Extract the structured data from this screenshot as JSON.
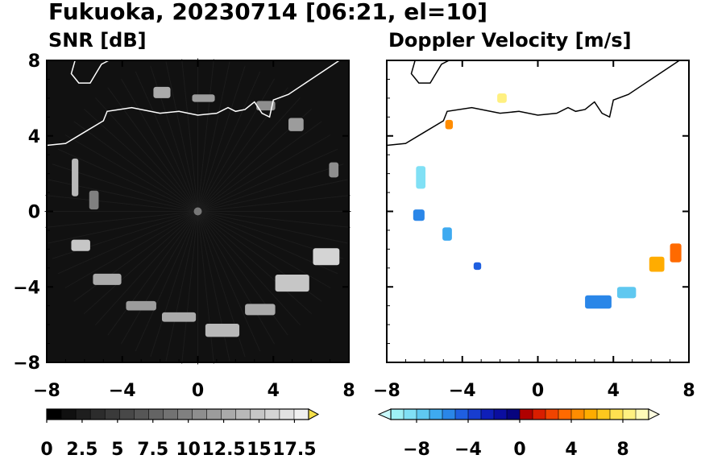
{
  "figure_title": "Fukuoka, 20230714 [06:21, el=10]",
  "chart_data": [
    {
      "type": "heatmap",
      "title": "SNR [dB]",
      "xlim": [
        -8,
        8
      ],
      "ylim": [
        -8,
        8
      ],
      "x_ticks": [
        "−8",
        "−4",
        "0",
        "4",
        "8"
      ],
      "y_ticks": [
        "8",
        "4",
        "0",
        "−4",
        "−8"
      ],
      "background_color": "#111111",
      "coastline_color": "#ffffff",
      "colorbar": {
        "range": [
          0,
          18.5
        ],
        "ticks": [
          "0",
          "2.5",
          "5",
          "7.5",
          "10",
          "12.5",
          "15",
          "17.5"
        ],
        "colors": [
          "#000000",
          "#101010",
          "#1e1e1e",
          "#2c2c2c",
          "#3a3a3a",
          "#484848",
          "#565656",
          "#646464",
          "#727272",
          "#808080",
          "#8e8e8e",
          "#9c9c9c",
          "#aaaaaa",
          "#b8b8b8",
          "#c6c6c6",
          "#d4d4d4",
          "#e2e2e2",
          "#f0f0f0"
        ],
        "extend_max_color": "#f5e04a"
      },
      "echo_clusters": [
        {
          "x": -6.5,
          "y": 1.8,
          "w": 0.35,
          "h": 2.0,
          "val": 14
        },
        {
          "x": -6.2,
          "y": -1.8,
          "w": 1.0,
          "h": 0.6,
          "val": 15
        },
        {
          "x": -4.8,
          "y": -3.6,
          "w": 1.5,
          "h": 0.6,
          "val": 13
        },
        {
          "x": -3.0,
          "y": -5.0,
          "w": 1.6,
          "h": 0.5,
          "val": 12
        },
        {
          "x": -1.0,
          "y": -5.6,
          "w": 1.8,
          "h": 0.5,
          "val": 13
        },
        {
          "x": 1.3,
          "y": -6.3,
          "w": 1.8,
          "h": 0.7,
          "val": 14
        },
        {
          "x": 3.3,
          "y": -5.2,
          "w": 1.6,
          "h": 0.6,
          "val": 13
        },
        {
          "x": 5.0,
          "y": -3.8,
          "w": 1.8,
          "h": 0.9,
          "val": 15
        },
        {
          "x": 6.8,
          "y": -2.4,
          "w": 1.4,
          "h": 0.9,
          "val": 16
        },
        {
          "x": 7.2,
          "y": 2.2,
          "w": 0.5,
          "h": 0.8,
          "val": 11
        },
        {
          "x": 5.2,
          "y": 4.6,
          "w": 0.8,
          "h": 0.7,
          "val": 12
        },
        {
          "x": -1.9,
          "y": 6.3,
          "w": 0.9,
          "h": 0.6,
          "val": 13
        },
        {
          "x": 0.3,
          "y": 6.0,
          "w": 1.2,
          "h": 0.4,
          "val": 12
        },
        {
          "x": 3.6,
          "y": 5.6,
          "w": 1.0,
          "h": 0.5,
          "val": 11
        },
        {
          "x": -5.5,
          "y": 0.6,
          "w": 0.5,
          "h": 1.0,
          "val": 10
        }
      ]
    },
    {
      "type": "heatmap",
      "title": "Doppler Velocity [m/s]",
      "xlim": [
        -8,
        8
      ],
      "ylim": [
        -8,
        8
      ],
      "x_ticks": [
        "−8",
        "−4",
        "0",
        "4",
        "8"
      ],
      "y_ticks": [
        "8",
        "4",
        "0",
        "−4",
        "−8"
      ],
      "background_color": "#ffffff",
      "coastline_color": "#000000",
      "colorbar": {
        "range": [
          -10,
          10
        ],
        "ticks": [
          "−8",
          "−4",
          "0",
          "4",
          "8"
        ],
        "colors": [
          "#9ef0f5",
          "#80e0f5",
          "#5fc8f0",
          "#3eaaf0",
          "#2a86e8",
          "#1f5fe0",
          "#173dd0",
          "#0f1fb8",
          "#0b0ea0",
          "#07047f",
          "#b00000",
          "#d81e00",
          "#f04400",
          "#ff6a00",
          "#ff8c00",
          "#ffac00",
          "#ffc81e",
          "#ffe050",
          "#fff080",
          "#fffab8"
        ],
        "extend_min_color": "#c8f8fa",
        "extend_max_color": "#fffde0"
      },
      "echo_clusters": [
        {
          "x": -6.2,
          "y": 1.8,
          "w": 0.5,
          "h": 1.2,
          "val": -9
        },
        {
          "x": -6.3,
          "y": -0.2,
          "w": 0.6,
          "h": 0.6,
          "val": -6
        },
        {
          "x": -4.8,
          "y": -1.2,
          "w": 0.5,
          "h": 0.7,
          "val": -7
        },
        {
          "x": -3.2,
          "y": -2.9,
          "w": 0.4,
          "h": 0.4,
          "val": -5
        },
        {
          "x": 3.2,
          "y": -4.8,
          "w": 1.4,
          "h": 0.7,
          "val": -6
        },
        {
          "x": 4.7,
          "y": -4.3,
          "w": 1.0,
          "h": 0.6,
          "val": -8
        },
        {
          "x": 6.3,
          "y": -2.8,
          "w": 0.8,
          "h": 0.8,
          "val": 5
        },
        {
          "x": 7.3,
          "y": -2.2,
          "w": 0.6,
          "h": 1.0,
          "val": 3
        },
        {
          "x": -4.7,
          "y": 4.6,
          "w": 0.4,
          "h": 0.5,
          "val": 4
        },
        {
          "x": -1.9,
          "y": 6.0,
          "w": 0.5,
          "h": 0.5,
          "val": 8
        }
      ]
    }
  ]
}
